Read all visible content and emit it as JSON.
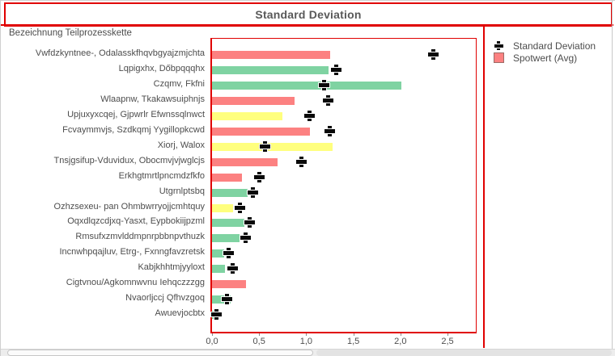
{
  "title": "Standard Deviation",
  "axis_caption": "Bezeichnung Teilprozesskette",
  "legend": {
    "std_label": "Standard Deviation",
    "avg_label": "Spotwert (Avg)"
  },
  "colors": {
    "salmon": "#FC8181",
    "green": "#7FD3A2",
    "yellow": "#FFFF7E",
    "frame_red": "#E00000",
    "marker_black": "#0A0A0A",
    "text_gray": "#4D4D4D"
  },
  "chart_data": {
    "type": "bar",
    "orientation": "horizontal",
    "title": "Standard Deviation",
    "ylabel": "Bezeichnung Teilprozesskette",
    "xlim": [
      0,
      2.8
    ],
    "grid": false,
    "legend_position": "top-right",
    "x_ticks": [
      {
        "value": 0,
        "label": "0,0"
      },
      {
        "value": 0.5,
        "label": "0,5"
      },
      {
        "value": 1,
        "label": "1,0"
      },
      {
        "value": 1.5,
        "label": "1,5"
      },
      {
        "value": 2,
        "label": "2,0"
      },
      {
        "value": 2.5,
        "label": "2,5"
      }
    ],
    "series": [
      {
        "name": "Spotwert (Avg)",
        "style": "bar"
      },
      {
        "name": "Standard Deviation",
        "style": "plus-marker"
      }
    ],
    "rows": [
      {
        "label": "Vwfdzkyntnee-, Odalasskfhqvbgyajzmjchta",
        "avg": 1.25,
        "std": 2.35,
        "color": "salmon"
      },
      {
        "label": "Lqpigxhx, Dőbpqqqhx",
        "avg": 1.24,
        "std": 1.32,
        "color": "green"
      },
      {
        "label": "Czqmv, Fkfni",
        "avg": 2.01,
        "std": 1.19,
        "color": "green"
      },
      {
        "label": "Wlaapnw, Tkakawsuiphnjs",
        "avg": 0.88,
        "std": 1.24,
        "color": "salmon"
      },
      {
        "label": "Upjuxyxcqej, Gjpwrlr Efwnssqlnwct",
        "avg": 0.75,
        "std": 1.04,
        "color": "yellow"
      },
      {
        "label": "Fcvaymmvjs, Szdkqmj Yygillopkcwd",
        "avg": 1.04,
        "std": 1.25,
        "color": "salmon"
      },
      {
        "label": "Xiorj, Walox",
        "avg": 1.28,
        "std": 0.57,
        "color": "yellow"
      },
      {
        "label": "Tnsjgsifup-Vduvidux, Obocmvjvjwglcjs",
        "avg": 0.7,
        "std": 0.95,
        "color": "salmon"
      },
      {
        "label": "Erkhgtmrtlpncmdzfkfo",
        "avg": 0.32,
        "std": 0.51,
        "color": "salmon"
      },
      {
        "label": "Utgrnlptsbq",
        "avg": 0.38,
        "std": 0.44,
        "color": "green"
      },
      {
        "label": "Ozhzsexeu- pan Ohmbwrryojjcmhtquy",
        "avg": 0.22,
        "std": 0.3,
        "color": "yellow"
      },
      {
        "label": "Oqxdlqzcdjxq-Yasxt, Eypbokiijpzml",
        "avg": 0.34,
        "std": 0.4,
        "color": "green"
      },
      {
        "label": "Rmsufxzmvlddmpnrpbbnpvthuzk",
        "avg": 0.29,
        "std": 0.36,
        "color": "green"
      },
      {
        "label": "Incnwhpqajluv, Etrg-, Fxnngfavzretsk",
        "avg": 0.13,
        "std": 0.18,
        "color": "green"
      },
      {
        "label": "Kabjkhhtmjyyloxt",
        "avg": 0.14,
        "std": 0.22,
        "color": "green"
      },
      {
        "label": "Cigtvnou/Agkomnwvnu Iehqczzzgg",
        "avg": 0.36,
        "std": null,
        "color": "salmon"
      },
      {
        "label": "Nvaorljccj Qfhvzgoq",
        "avg": 0.2,
        "std": 0.16,
        "color": "green"
      },
      {
        "label": "Awuevjocbtx",
        "avg": 0.04,
        "std": 0.05,
        "color": "green"
      }
    ]
  }
}
